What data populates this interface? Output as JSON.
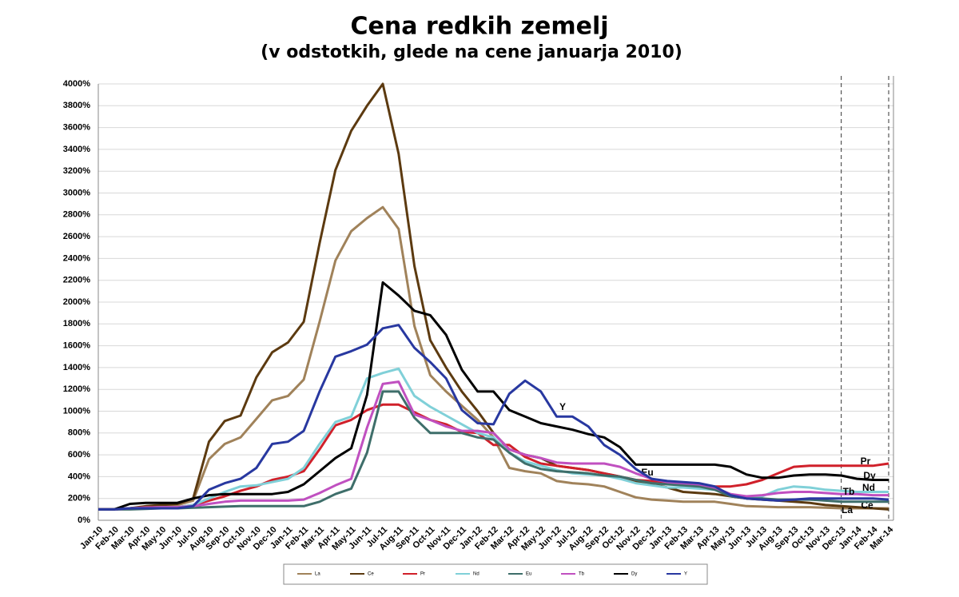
{
  "chart_data": {
    "type": "line",
    "title": "Cena redkih zemelj",
    "subtitle": "(v odstotkih, glede na cene januarja 2010)",
    "categories": [
      "Jan-10",
      "Feb-10",
      "Mar-10",
      "Apr-10",
      "May-10",
      "Jun-10",
      "Jul-10",
      "Aug-10",
      "Sep-10",
      "Oct-10",
      "Nov-10",
      "Dec-10",
      "Jan-11",
      "Feb-11",
      "Mar-11",
      "Apr-11",
      "May-11",
      "Jun-11",
      "Jul-11",
      "Aug-11",
      "Sep-11",
      "Oct-11",
      "Nov-11",
      "Dec-11",
      "Jan-12",
      "Feb-12",
      "Mar-12",
      "Apr-12",
      "May-12",
      "Jun-12",
      "Jul-12",
      "Aug-12",
      "Sep-12",
      "Oct-12",
      "Nov-12",
      "Dec-12",
      "Jan-13",
      "Feb-13",
      "Mar-13",
      "Apr-13",
      "May-13",
      "Jun-13",
      "Jul-13",
      "Aug-13",
      "Sep-13",
      "Oct-13",
      "Nov-13",
      "Dec-13",
      "Jan-14",
      "Feb-14",
      "Mar-14"
    ],
    "series": [
      {
        "name": "La",
        "color": "#a0825a",
        "values": [
          100,
          100,
          110,
          120,
          130,
          140,
          180,
          560,
          700,
          760,
          930,
          1100,
          1140,
          1290,
          1820,
          2380,
          2650,
          2770,
          2870,
          2670,
          1780,
          1330,
          1180,
          1050,
          920,
          760,
          480,
          450,
          430,
          360,
          340,
          330,
          310,
          260,
          210,
          190,
          180,
          170,
          170,
          170,
          150,
          130,
          125,
          120,
          120,
          120,
          115,
          110,
          110,
          110,
          110
        ]
      },
      {
        "name": "Ce",
        "color": "#5c3a10",
        "values": [
          100,
          100,
          110,
          130,
          140,
          150,
          200,
          720,
          910,
          960,
          1310,
          1540,
          1630,
          1820,
          2540,
          3210,
          3570,
          3800,
          4000,
          3360,
          2330,
          1650,
          1400,
          1180,
          1000,
          800,
          650,
          600,
          570,
          500,
          480,
          460,
          430,
          400,
          360,
          330,
          300,
          260,
          250,
          240,
          220,
          200,
          190,
          180,
          170,
          160,
          140,
          130,
          120,
          110,
          100
        ]
      },
      {
        "name": "Pr",
        "color": "#d0202a",
        "values": [
          100,
          100,
          110,
          120,
          120,
          120,
          140,
          180,
          220,
          270,
          310,
          370,
          400,
          450,
          650,
          870,
          920,
          1010,
          1060,
          1060,
          990,
          920,
          880,
          810,
          800,
          690,
          690,
          580,
          520,
          500,
          480,
          460,
          430,
          400,
          370,
          360,
          350,
          340,
          330,
          310,
          310,
          330,
          370,
          430,
          490,
          500,
          500,
          500,
          500,
          500,
          520
        ]
      },
      {
        "name": "Nd",
        "color": "#80d0d8",
        "values": [
          100,
          100,
          110,
          115,
          120,
          120,
          140,
          200,
          260,
          310,
          320,
          350,
          380,
          480,
          700,
          900,
          950,
          1300,
          1350,
          1390,
          1140,
          1040,
          960,
          880,
          800,
          760,
          620,
          540,
          500,
          460,
          430,
          420,
          410,
          380,
          340,
          320,
          300,
          300,
          290,
          280,
          240,
          210,
          220,
          280,
          310,
          300,
          280,
          270,
          260,
          260,
          260
        ]
      },
      {
        "name": "Eu",
        "color": "#3e6e6a",
        "values": [
          100,
          100,
          100,
          105,
          110,
          110,
          115,
          120,
          125,
          130,
          130,
          130,
          130,
          130,
          170,
          240,
          290,
          620,
          1180,
          1180,
          940,
          800,
          800,
          800,
          760,
          740,
          620,
          520,
          470,
          450,
          440,
          430,
          410,
          400,
          370,
          340,
          330,
          320,
          310,
          280,
          220,
          200,
          200,
          190,
          190,
          190,
          180,
          170,
          170,
          170,
          170
        ]
      },
      {
        "name": "Tb",
        "color": "#c050c0",
        "values": [
          100,
          100,
          110,
          115,
          120,
          120,
          130,
          150,
          170,
          180,
          180,
          180,
          180,
          190,
          250,
          320,
          380,
          850,
          1250,
          1270,
          970,
          920,
          860,
          820,
          820,
          800,
          650,
          600,
          570,
          530,
          520,
          520,
          520,
          490,
          430,
          380,
          350,
          340,
          330,
          300,
          240,
          220,
          230,
          250,
          260,
          260,
          250,
          240,
          240,
          230,
          230
        ]
      },
      {
        "name": "Dy",
        "color": "#000000",
        "values": [
          100,
          100,
          150,
          160,
          160,
          160,
          200,
          230,
          240,
          240,
          240,
          240,
          260,
          330,
          450,
          570,
          660,
          1150,
          2180,
          2060,
          1920,
          1880,
          1700,
          1380,
          1180,
          1180,
          1010,
          950,
          890,
          860,
          830,
          790,
          760,
          670,
          510,
          510,
          510,
          510,
          510,
          510,
          490,
          420,
          390,
          390,
          410,
          420,
          420,
          410,
          380,
          370,
          370
        ]
      },
      {
        "name": "Y",
        "color": "#2838a0",
        "values": [
          100,
          100,
          110,
          110,
          110,
          110,
          130,
          280,
          340,
          380,
          480,
          700,
          720,
          820,
          1180,
          1500,
          1550,
          1610,
          1760,
          1790,
          1580,
          1450,
          1300,
          1010,
          890,
          880,
          1160,
          1280,
          1180,
          950,
          950,
          860,
          690,
          600,
          470,
          380,
          360,
          350,
          340,
          310,
          230,
          200,
          190,
          180,
          190,
          200,
          200,
          200,
          200,
          200,
          190
        ]
      }
    ],
    "ylim": [
      0,
      4000
    ],
    "yticks": [
      {
        "value": 0,
        "label": "0%"
      },
      {
        "value": 200,
        "label": "200%"
      },
      {
        "value": 400,
        "label": "400%"
      },
      {
        "value": 600,
        "label": "600%"
      },
      {
        "value": 800,
        "label": "800%"
      },
      {
        "value": 1000,
        "label": "1000%"
      },
      {
        "value": 1200,
        "label": "1200%"
      },
      {
        "value": 1400,
        "label": "1400%"
      },
      {
        "value": 1600,
        "label": "1600%"
      },
      {
        "value": 1800,
        "label": "1800%"
      },
      {
        "value": 2000,
        "label": "2000%"
      },
      {
        "value": 2200,
        "label": "2200%"
      },
      {
        "value": 2400,
        "label": "2400%"
      },
      {
        "value": 2600,
        "label": "2600%"
      },
      {
        "value": 2800,
        "label": "2800%"
      },
      {
        "value": 3000,
        "label": "3000%"
      },
      {
        "value": 3200,
        "label": "3200%"
      },
      {
        "value": 3400,
        "label": "3400%"
      },
      {
        "value": 3600,
        "label": "3600%"
      },
      {
        "value": 3800,
        "label": "3800%"
      },
      {
        "value": 4000,
        "label": "4000%"
      }
    ],
    "grid": true,
    "legend": "bottom"
  }
}
